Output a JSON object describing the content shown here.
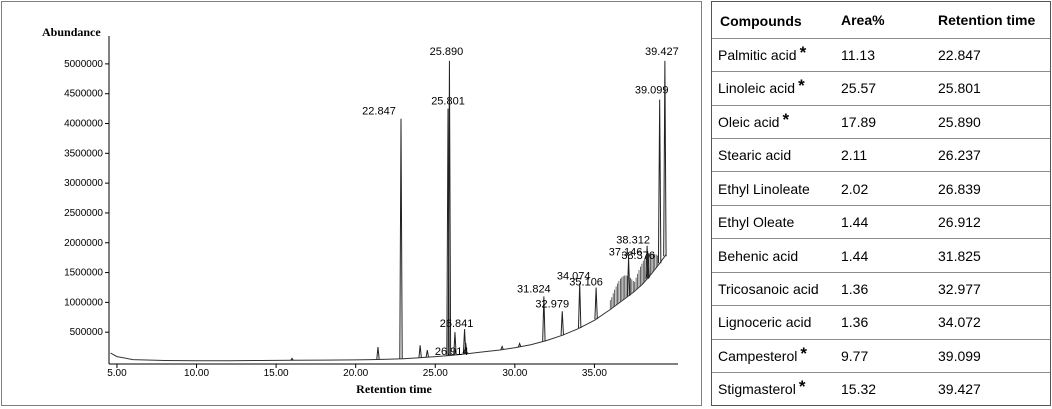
{
  "chart_data": {
    "type": "line",
    "ylabel": "Abundance",
    "xlabel": "Retention time",
    "xlim": [
      4.5,
      40.0
    ],
    "ylim": [
      0,
      5300000
    ],
    "x_ticks": [
      "5.00",
      "10.00",
      "15.00",
      "20.00",
      "25.00",
      "30.00",
      "35.00"
    ],
    "y_ticks": [
      "500000",
      "1000000",
      "1500000",
      "2000000",
      "2500000",
      "3000000",
      "3500000",
      "4000000",
      "4500000",
      "5000000"
    ],
    "series": [
      {
        "x": [
          4.6,
          5.0,
          6.0,
          8.0,
          10.0,
          12.0,
          14.0,
          16.0,
          18.0,
          20.0,
          21.0,
          22.0,
          23.0,
          24.0,
          25.0,
          26.0,
          27.0,
          28.0,
          29.0,
          30.0,
          31.0,
          32.0,
          33.0,
          34.0,
          35.0,
          36.0,
          37.0,
          37.5,
          38.0,
          38.5,
          39.0,
          39.5
        ],
        "y": [
          150000,
          90000,
          40000,
          25000,
          20000,
          20000,
          25000,
          30000,
          32000,
          35000,
          40000,
          45000,
          55000,
          70000,
          90000,
          110000,
          140000,
          170000,
          200000,
          240000,
          290000,
          360000,
          450000,
          560000,
          700000,
          880000,
          1080000,
          1180000,
          1300000,
          1450000,
          1620000,
          1800000
        ]
      }
    ],
    "peaks": [
      {
        "x": 16.0,
        "y": 60000
      },
      {
        "x": 21.4,
        "y": 250000
      },
      {
        "x": 22.847,
        "y": 4080000,
        "label": "22.847"
      },
      {
        "x": 24.05,
        "y": 280000
      },
      {
        "x": 24.5,
        "y": 200000
      },
      {
        "x": 25.801,
        "y": 4250000,
        "label": "25.801"
      },
      {
        "x": 25.89,
        "y": 5050000,
        "label": "25.890"
      },
      {
        "x": 26.237,
        "y": 500000
      },
      {
        "x": 26.841,
        "y": 550000,
        "label": "26.841"
      },
      {
        "x": 26.914,
        "y": 320000,
        "label": "26.914"
      },
      {
        "x": 29.2,
        "y": 260000
      },
      {
        "x": 30.3,
        "y": 310000
      },
      {
        "x": 31.824,
        "y": 1100000,
        "label": "31.824"
      },
      {
        "x": 32.979,
        "y": 850000,
        "label": "32.979"
      },
      {
        "x": 34.074,
        "y": 1320000,
        "label": "34.074"
      },
      {
        "x": 35.106,
        "y": 1250000,
        "label": "35.106"
      },
      {
        "x": 37.146,
        "y": 1750000,
        "label": "37.146"
      },
      {
        "x": 38.312,
        "y": 1950000,
        "label": "38.312"
      },
      {
        "x": 38.376,
        "y": 1830000,
        "label": "38.376"
      },
      {
        "x": 39.099,
        "y": 4400000,
        "label": "39.099"
      },
      {
        "x": 39.427,
        "y": 5050000,
        "label": "39.427"
      }
    ]
  },
  "table": {
    "headers": [
      "Compounds",
      "Area%",
      "Retention time"
    ],
    "rows": [
      {
        "name": "Palmitic acid",
        "star": "*",
        "area": "11.13",
        "rt": "22.847"
      },
      {
        "name": "Linoleic acid",
        "star": "*",
        "area": "25.57",
        "rt": "25.801"
      },
      {
        "name": "Oleic acid",
        "star": "*",
        "area": "17.89",
        "rt": "25.890"
      },
      {
        "name": "Stearic acid",
        "star": "",
        "area": "2.11",
        "rt": "26.237"
      },
      {
        "name": "Ethyl Linoleate",
        "star": "",
        "area": "2.02",
        "rt": "26.839"
      },
      {
        "name": "Ethyl Oleate",
        "star": "",
        "area": "1.44",
        "rt": "26.912"
      },
      {
        "name": "Behenic acid",
        "star": "",
        "area": "1.44",
        "rt": "31.825"
      },
      {
        "name": "Tricosanoic acid",
        "star": "",
        "area": "1.36",
        "rt": "32.977"
      },
      {
        "name": "Lignoceric acid",
        "star": "",
        "area": "1.36",
        "rt": "34.072"
      },
      {
        "name": "Campesterol",
        "star": "*",
        "area": "9.77",
        "rt": "39.099"
      },
      {
        "name": "Stigmasterol",
        "star": "*",
        "area": "15.32",
        "rt": "39.427"
      }
    ]
  }
}
